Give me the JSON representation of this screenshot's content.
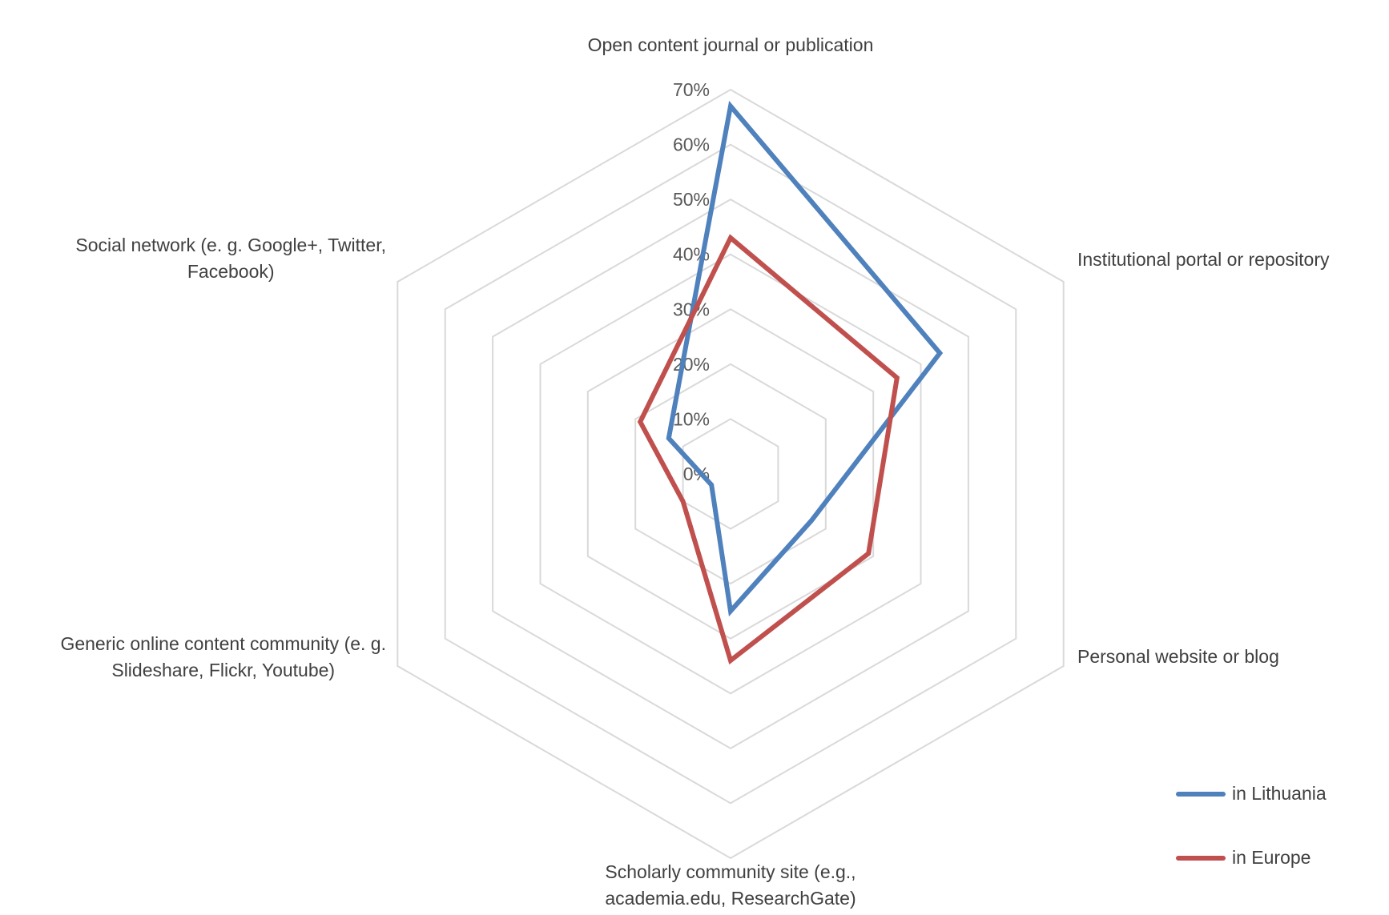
{
  "chart_data": {
    "type": "radar",
    "title": "",
    "categories": [
      "Open content journal or publication",
      "Institutional portal or repository",
      "Personal website or blog",
      "Scholarly community site (e.g., academia.edu, ResearchGate)",
      "Generic online content community (e. g. Slideshare, Flickr, Youtube)",
      "Social network (e. g. Google+, Twitter, Facebook)"
    ],
    "category_lines": [
      [
        "Open content journal or publication"
      ],
      [
        "Institutional portal or repository"
      ],
      [
        "Personal website or blog"
      ],
      [
        "Scholarly community site (e.g.,",
        "academia.edu, ResearchGate)"
      ],
      [
        "Generic online content community (e. g.",
        "Slideshare, Flickr, Youtube)"
      ],
      [
        "Social network (e. g. Google+, Twitter,",
        "Facebook)"
      ]
    ],
    "tick_labels": [
      "0%",
      "10%",
      "20%",
      "30%",
      "40%",
      "50%",
      "60%",
      "70%"
    ],
    "rlim": [
      0,
      70
    ],
    "grid": true,
    "legend_position": "bottom-right",
    "series": [
      {
        "name": "in Lithuania",
        "color": "#4f81bd",
        "values": [
          67,
          44,
          17,
          25,
          4,
          13
        ]
      },
      {
        "name": "in Europe",
        "color": "#c0504d",
        "values": [
          43,
          35,
          29,
          34,
          10,
          19
        ]
      }
    ],
    "grid_color": "#d9d9d9"
  }
}
